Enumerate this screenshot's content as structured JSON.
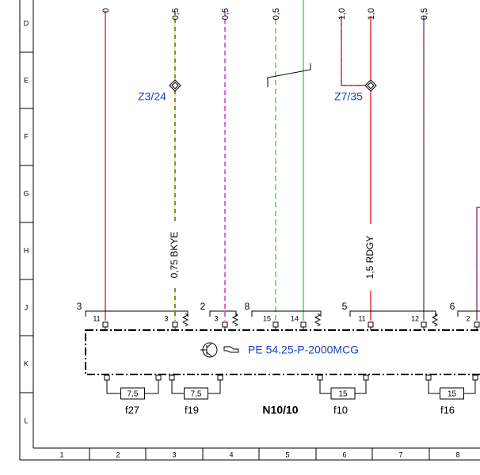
{
  "row_labels": [
    "D",
    "E",
    "F",
    "G",
    "H",
    "J",
    "K",
    "L"
  ],
  "column_labels": [
    "1",
    "2",
    "3",
    "4",
    "5",
    "6",
    "7",
    "8"
  ],
  "wire_sizes": [
    "0",
    "0,5",
    "0,5",
    "0,5",
    "1,0",
    "1,0",
    "0,5"
  ],
  "wire_labels": [
    "0,75 BKYE",
    "1,5 RDGY"
  ],
  "splices": [
    "Z3/24",
    "Z7/35"
  ],
  "connector_numbers": [
    "3",
    "2",
    "8",
    "5",
    "6"
  ],
  "pin_numbers": [
    "11",
    "3",
    "3",
    "15",
    "14",
    "11",
    "12",
    "2"
  ],
  "reference": "PE 54.25-P-2000MCG",
  "component": "N10/10",
  "fuses": [
    {
      "name": "f27",
      "rating": "7,5"
    },
    {
      "name": "f19",
      "rating": "7,5"
    },
    {
      "name": "f10",
      "rating": "15"
    },
    {
      "name": "f16",
      "rating": "15"
    }
  ]
}
